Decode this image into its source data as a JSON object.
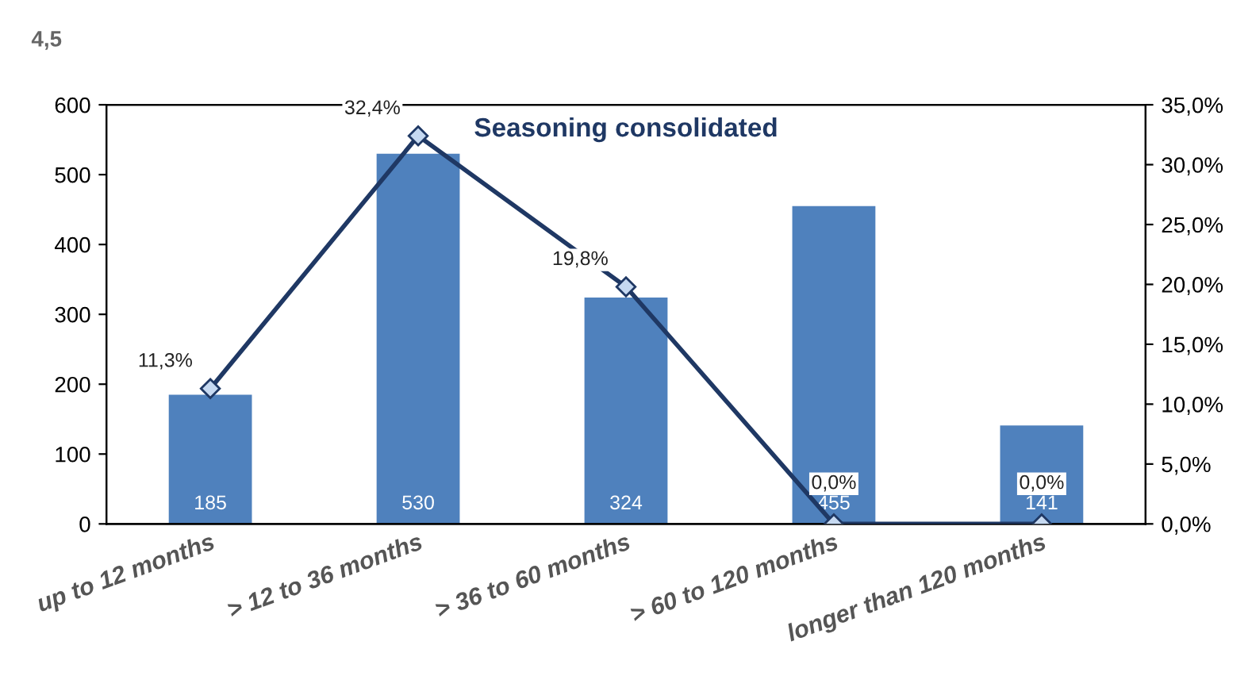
{
  "chart_data": {
    "type": "bar",
    "title": "Seasoning consolidated",
    "annotations": [
      "4,5"
    ],
    "categories": [
      "up to 12 months",
      "> 12 to 36 months",
      "> 36 to 60 months",
      "> 60 to 120 months",
      "longer than 120 months"
    ],
    "series": [
      {
        "color": "#4f81bd",
        "values": [
          185,
          530,
          324,
          455,
          141
        ],
        "value_labels": [
          "185",
          "530",
          "324",
          "455",
          "141"
        ]
      },
      {
        "type": "line",
        "axis": "y2",
        "color": "#1f3864",
        "marker": "diamond",
        "values": [
          11.3,
          32.4,
          19.8,
          0.0,
          0.0
        ],
        "value_labels": [
          "11,3%",
          "32,4%",
          "19,8%",
          "0,0%",
          "0,0%"
        ]
      }
    ],
    "ylim": [
      0,
      600
    ],
    "yticks": [
      0,
      100,
      200,
      300,
      400,
      500,
      600
    ],
    "y2lim": [
      0,
      35
    ],
    "y2ticks": [
      {
        "value": 0,
        "label": "0,0%"
      },
      {
        "value": 5,
        "label": "5,0%"
      },
      {
        "value": 10,
        "label": "10,0%"
      },
      {
        "value": 15,
        "label": "15,0%"
      },
      {
        "value": 20,
        "label": "20,0%"
      },
      {
        "value": 25,
        "label": "25,0%"
      },
      {
        "value": 30,
        "label": "30,0%"
      },
      {
        "value": 35,
        "label": "35,0%"
      }
    ],
    "grid": false,
    "legend": false
  }
}
